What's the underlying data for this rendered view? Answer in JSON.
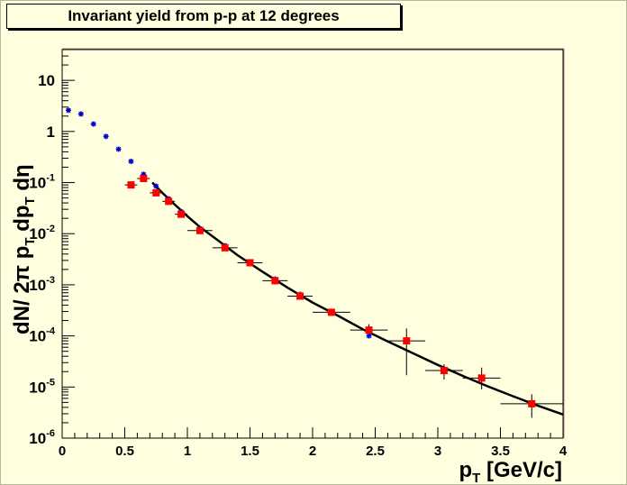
{
  "chart_data": {
    "type": "scatter",
    "title": "Invariant yield from p-p at 12 degrees",
    "xlabel": "p",
    "xlabel_sub": "T",
    "xlabel_suffix": " [GeV/c]",
    "ylabel_parts": [
      {
        "t": "dN/ 2",
        "sub": false
      },
      {
        "t": "π",
        "sub": false
      },
      {
        "t": " p",
        "sub": false
      },
      {
        "t": "T",
        "sub": true
      },
      {
        "t": " dp",
        "sub": false
      },
      {
        "t": "T",
        "sub": true
      },
      {
        "t": " d",
        "sub": false
      },
      {
        "t": "η",
        "sub": false
      }
    ],
    "xlim": [
      0,
      4
    ],
    "ylim": [
      1e-06,
      40
    ],
    "ylog": true,
    "x_ticks": [
      {
        "v": 0,
        "label": "0"
      },
      {
        "v": 0.5,
        "label": "0.5"
      },
      {
        "v": 1,
        "label": "1"
      },
      {
        "v": 1.5,
        "label": "1.5"
      },
      {
        "v": 2,
        "label": "2"
      },
      {
        "v": 2.5,
        "label": "2.5"
      },
      {
        "v": 3,
        "label": "3"
      },
      {
        "v": 3.5,
        "label": "3.5"
      },
      {
        "v": 4,
        "label": "4"
      }
    ],
    "y_ticks": [
      {
        "v": 10,
        "label": "10",
        "sup": ""
      },
      {
        "v": 1,
        "label": "1",
        "sup": ""
      },
      {
        "v": 0.1,
        "label": "10",
        "sup": "-1"
      },
      {
        "v": 0.01,
        "label": "10",
        "sup": "-2"
      },
      {
        "v": 0.001,
        "label": "10",
        "sup": "-3"
      },
      {
        "v": 0.0001,
        "label": "10",
        "sup": "-4"
      },
      {
        "v": 1e-05,
        "label": "10",
        "sup": "-5"
      },
      {
        "v": 1e-06,
        "label": "10",
        "sup": "-6"
      }
    ],
    "series": [
      {
        "marker": "star",
        "color": "#0000cc",
        "points": [
          {
            "x": 0.05,
            "y": 2.6
          },
          {
            "x": 0.15,
            "y": 2.2
          },
          {
            "x": 0.25,
            "y": 1.4
          },
          {
            "x": 0.35,
            "y": 0.8
          },
          {
            "x": 0.45,
            "y": 0.45
          },
          {
            "x": 0.55,
            "y": 0.26
          },
          {
            "x": 0.65,
            "y": 0.145
          },
          {
            "x": 0.75,
            "y": 0.085
          },
          {
            "x": 0.85,
            "y": 0.048
          },
          {
            "x": 0.95,
            "y": 0.027
          },
          {
            "x": 1.1,
            "y": 0.0125
          },
          {
            "x": 1.3,
            "y": 0.0058
          },
          {
            "x": 1.5,
            "y": 0.0027
          },
          {
            "x": 1.7,
            "y": 0.0013
          },
          {
            "x": 1.9,
            "y": 0.00065
          },
          {
            "x": 2.15,
            "y": 0.0003
          },
          {
            "x": 2.45,
            "y": 0.0001
          }
        ]
      },
      {
        "marker": "square",
        "color": "#ff0000",
        "points": [
          {
            "x": 0.55,
            "y": 0.09,
            "xerr": 0.05,
            "ylo": 0.085,
            "yhi": 0.095
          },
          {
            "x": 0.65,
            "y": 0.12,
            "xerr": 0.05,
            "ylo": 0.11,
            "yhi": 0.13
          },
          {
            "x": 0.75,
            "y": 0.063,
            "xerr": 0.05,
            "ylo": 0.058,
            "yhi": 0.068
          },
          {
            "x": 0.85,
            "y": 0.043,
            "xerr": 0.05,
            "ylo": 0.04,
            "yhi": 0.047
          },
          {
            "x": 0.95,
            "y": 0.024,
            "xerr": 0.05,
            "ylo": 0.022,
            "yhi": 0.026
          },
          {
            "x": 1.1,
            "y": 0.0115,
            "xerr": 0.1,
            "ylo": 0.0105,
            "yhi": 0.0125
          },
          {
            "x": 1.3,
            "y": 0.0053,
            "xerr": 0.1,
            "ylo": 0.0048,
            "yhi": 0.0058
          },
          {
            "x": 1.5,
            "y": 0.0027,
            "xerr": 0.1,
            "ylo": 0.0024,
            "yhi": 0.003
          },
          {
            "x": 1.7,
            "y": 0.0012,
            "xerr": 0.1,
            "ylo": 0.00105,
            "yhi": 0.00135
          },
          {
            "x": 1.9,
            "y": 0.0006,
            "xerr": 0.1,
            "ylo": 0.00052,
            "yhi": 0.00068
          },
          {
            "x": 2.15,
            "y": 0.00029,
            "xerr": 0.15,
            "ylo": 0.00025,
            "yhi": 0.00033
          },
          {
            "x": 2.45,
            "y": 0.00013,
            "xerr": 0.15,
            "ylo": 0.0001,
            "yhi": 0.00017
          },
          {
            "x": 2.75,
            "y": 8e-05,
            "xerr": 0.15,
            "ylo": 1.7e-05,
            "yhi": 0.00014
          },
          {
            "x": 3.05,
            "y": 2.1e-05,
            "xerr": 0.15,
            "ylo": 1.4e-05,
            "yhi": 2.8e-05
          },
          {
            "x": 3.35,
            "y": 1.5e-05,
            "xerr": 0.15,
            "ylo": 9e-06,
            "yhi": 2.4e-05
          },
          {
            "x": 3.75,
            "y": 4.7e-06,
            "xerr": 0.25,
            "ylo": 2.5e-06,
            "yhi": 7.2e-06
          }
        ]
      }
    ],
    "fit_curve": {
      "color": "#000000",
      "points": [
        {
          "x": 0.72,
          "y": 0.1
        },
        {
          "x": 0.8,
          "y": 0.063
        },
        {
          "x": 0.9,
          "y": 0.037
        },
        {
          "x": 1.0,
          "y": 0.022
        },
        {
          "x": 1.1,
          "y": 0.0135
        },
        {
          "x": 1.25,
          "y": 0.0072
        },
        {
          "x": 1.4,
          "y": 0.0038
        },
        {
          "x": 1.6,
          "y": 0.0018
        },
        {
          "x": 1.8,
          "y": 0.00088
        },
        {
          "x": 2.0,
          "y": 0.00045
        },
        {
          "x": 2.2,
          "y": 0.00025
        },
        {
          "x": 2.4,
          "y": 0.000135
        },
        {
          "x": 2.6,
          "y": 7.8e-05
        },
        {
          "x": 2.8,
          "y": 4.6e-05
        },
        {
          "x": 3.0,
          "y": 2.7e-05
        },
        {
          "x": 3.2,
          "y": 1.65e-05
        },
        {
          "x": 3.4,
          "y": 1.03e-05
        },
        {
          "x": 3.6,
          "y": 6.6e-06
        },
        {
          "x": 3.8,
          "y": 4.3e-06
        },
        {
          "x": 4.0,
          "y": 2.9e-06
        }
      ]
    }
  }
}
